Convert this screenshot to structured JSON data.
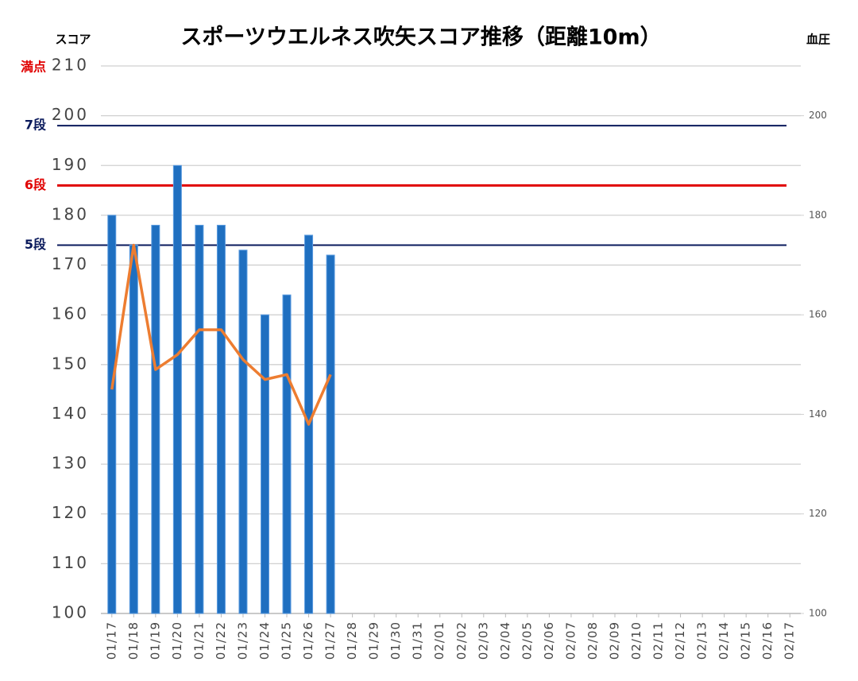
{
  "chart_data": {
    "type": "bar",
    "title": "スポーツウエルネス吹矢スコア推移（距離10m）",
    "y_axis_label": "スコア",
    "y2_axis_label": "血圧",
    "categories": [
      "01/17",
      "01/18",
      "01/19",
      "01/20",
      "01/21",
      "01/22",
      "01/23",
      "01/24",
      "01/25",
      "01/26",
      "01/27",
      "01/28",
      "01/29",
      "01/30",
      "01/31",
      "02/01",
      "02/02",
      "02/03",
      "02/04",
      "02/05",
      "02/06",
      "02/07",
      "02/08",
      "02/09",
      "02/10",
      "02/11",
      "02/12",
      "02/13",
      "02/14",
      "02/15",
      "02/16",
      "02/17"
    ],
    "series": [
      {
        "type": "bar",
        "color": "#1f6fc0",
        "values": [
          180,
          174,
          178,
          190,
          178,
          178,
          173,
          160,
          164,
          176,
          172,
          null,
          null,
          null,
          null,
          null,
          null,
          null,
          null,
          null,
          null,
          null,
          null,
          null,
          null,
          null,
          null,
          null,
          null,
          null,
          null,
          null
        ]
      },
      {
        "type": "line",
        "axis": "y2",
        "color": "#ed7d31",
        "values": [
          145,
          174,
          149,
          152,
          157,
          157,
          151,
          147,
          148,
          138,
          148,
          null,
          null,
          null,
          null,
          null,
          null,
          null,
          null,
          null,
          null,
          null,
          null,
          null,
          null,
          null,
          null,
          null,
          null,
          null,
          null,
          null
        ]
      }
    ],
    "ylim": [
      100,
      210
    ],
    "yticks": [
      100,
      110,
      120,
      130,
      140,
      150,
      160,
      170,
      180,
      190,
      200,
      210
    ],
    "y2lim": [
      100,
      210
    ],
    "y2ticks": [
      100,
      120,
      140,
      160,
      180,
      200
    ],
    "grid": true,
    "annotations": [
      {
        "text": "満点",
        "value": 210,
        "color": "#e00000"
      }
    ],
    "reference_lines": [
      {
        "label": "7段",
        "value": 198,
        "color": "#0a1a5c"
      },
      {
        "label": "6段",
        "value": 186,
        "color": "#e00000"
      },
      {
        "label": "5段",
        "value": 174,
        "color": "#0a1a5c"
      }
    ]
  }
}
